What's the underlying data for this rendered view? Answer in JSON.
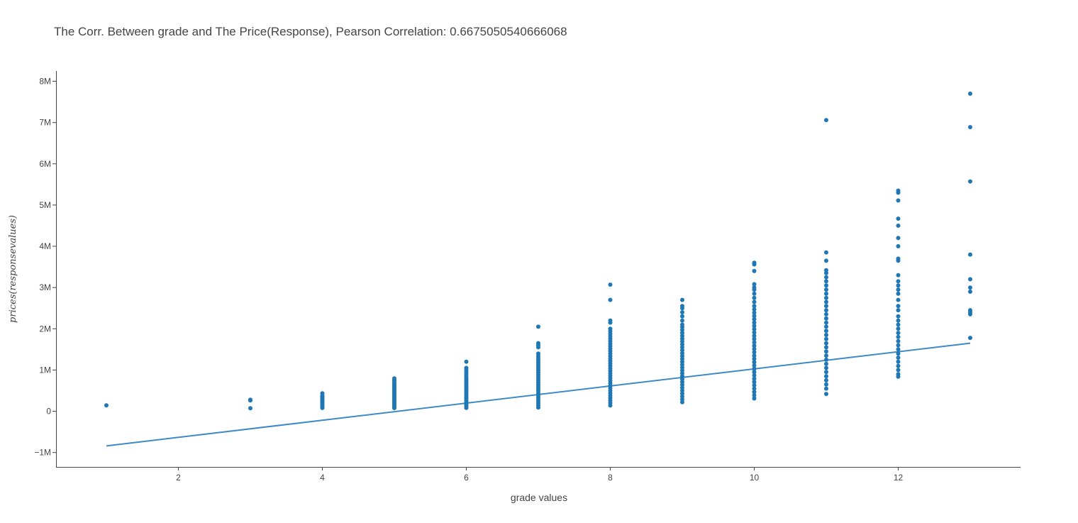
{
  "chart_data": {
    "type": "scatter",
    "title": "The Corr. Between grade and The Price(Response), Pearson Correlation: 0.6675050540666068",
    "xlabel": "grade values",
    "ylabel": "prices(responsevalues)",
    "xlim": [
      0.3,
      13.7
    ],
    "ylim": [
      -1350000,
      8250000
    ],
    "x_ticks": [
      2,
      4,
      6,
      8,
      10,
      12
    ],
    "x_tick_labels": [
      "2",
      "4",
      "6",
      "8",
      "10",
      "12"
    ],
    "y_ticks": [
      -1000000,
      0,
      1000000,
      2000000,
      3000000,
      4000000,
      5000000,
      6000000,
      7000000,
      8000000
    ],
    "y_tick_labels": [
      "−1M",
      "0",
      "1M",
      "2M",
      "3M",
      "4M",
      "5M",
      "6M",
      "7M",
      "8M"
    ],
    "grid": false,
    "marker_color": "#1f77b4",
    "line_color": "#3d8ac5",
    "series": [
      {
        "kind": "markers",
        "groups": [
          {
            "x": 1,
            "values": [
              142000
            ]
          },
          {
            "x": 3,
            "values": [
              75000,
              262000,
              280000
            ]
          },
          {
            "x": 4,
            "values": [
              80000,
              100000,
              120000,
              150000,
              170000,
              200000,
              220000,
              240000,
              260000,
              280000,
              300000,
              330000,
              360000,
              380000,
              435000
            ]
          },
          {
            "x": 5,
            "values": [
              78000,
              110000,
              140000,
              170000,
              200000,
              230000,
              260000,
              290000,
              320000,
              350000,
              380000,
              410000,
              440000,
              470000,
              500000,
              530000,
              560000,
              590000,
              620000,
              650000,
              680000,
              720000,
              760000,
              795000
            ]
          },
          {
            "x": 6,
            "values": [
              82000,
              120000,
              160000,
              200000,
              240000,
              280000,
              320000,
              360000,
              400000,
              440000,
              480000,
              520000,
              560000,
              600000,
              640000,
              680000,
              720000,
              760000,
              800000,
              850000,
              900000,
              950000,
              1000000,
              1050000,
              1200000
            ]
          },
          {
            "x": 7,
            "values": [
              90000,
              140000,
              190000,
              240000,
              290000,
              340000,
              390000,
              440000,
              490000,
              540000,
              590000,
              640000,
              690000,
              740000,
              790000,
              840000,
              890000,
              940000,
              990000,
              1040000,
              1090000,
              1140000,
              1190000,
              1240000,
              1290000,
              1340000,
              1400000,
              1550000,
              1600000,
              1650000,
              2050000
            ]
          },
          {
            "x": 8,
            "values": [
              140000,
              200000,
              260000,
              320000,
              380000,
              440000,
              500000,
              560000,
              620000,
              680000,
              740000,
              800000,
              860000,
              920000,
              980000,
              1040000,
              1100000,
              1160000,
              1220000,
              1280000,
              1340000,
              1400000,
              1460000,
              1520000,
              1580000,
              1640000,
              1700000,
              1760000,
              1820000,
              1880000,
              1940000,
              2000000,
              2150000,
              2200000,
              2700000,
              3070000
            ]
          },
          {
            "x": 9,
            "values": [
              220000,
              290000,
              360000,
              430000,
              500000,
              570000,
              640000,
              710000,
              780000,
              850000,
              920000,
              990000,
              1060000,
              1130000,
              1200000,
              1270000,
              1340000,
              1410000,
              1480000,
              1550000,
              1620000,
              1690000,
              1760000,
              1830000,
              1900000,
              1970000,
              2040000,
              2100000,
              2200000,
              2300000,
              2400000,
              2500000,
              2550000,
              2700000
            ]
          },
          {
            "x": 10,
            "values": [
              310000,
              390000,
              470000,
              550000,
              630000,
              710000,
              790000,
              870000,
              950000,
              1030000,
              1110000,
              1190000,
              1270000,
              1350000,
              1430000,
              1510000,
              1590000,
              1670000,
              1750000,
              1830000,
              1910000,
              1990000,
              2070000,
              2150000,
              2230000,
              2310000,
              2390000,
              2470000,
              2550000,
              2650000,
              2750000,
              2850000,
              2950000,
              3000000,
              3080000,
              3400000,
              3560000,
              3600000
            ]
          },
          {
            "x": 11,
            "values": [
              420000,
              550000,
              650000,
              750000,
              850000,
              950000,
              1050000,
              1150000,
              1250000,
              1350000,
              1450000,
              1550000,
              1650000,
              1750000,
              1850000,
              1950000,
              2050000,
              2150000,
              2250000,
              2350000,
              2450000,
              2550000,
              2650000,
              2750000,
              2850000,
              2950000,
              3050000,
              3150000,
              3250000,
              3350000,
              3420000,
              3650000,
              3850000,
              7060000
            ]
          },
          {
            "x": 12,
            "values": [
              840000,
              900000,
              1000000,
              1100000,
              1200000,
              1300000,
              1400000,
              1500000,
              1600000,
              1700000,
              1800000,
              1900000,
              2000000,
              2100000,
              2200000,
              2300000,
              2450000,
              2550000,
              2700000,
              2850000,
              2950000,
              3050000,
              3150000,
              3300000,
              3650000,
              3700000,
              4000000,
              4200000,
              4500000,
              4670000,
              5110000,
              5300000,
              5350000
            ]
          },
          {
            "x": 13,
            "values": [
              1780000,
              2350000,
              2400000,
              2450000,
              2900000,
              3000000,
              3200000,
              3800000,
              5570000,
              6890000,
              7700000
            ]
          }
        ]
      },
      {
        "kind": "line",
        "x": [
          1,
          13
        ],
        "values": [
          -840000,
          1650000
        ]
      }
    ]
  }
}
